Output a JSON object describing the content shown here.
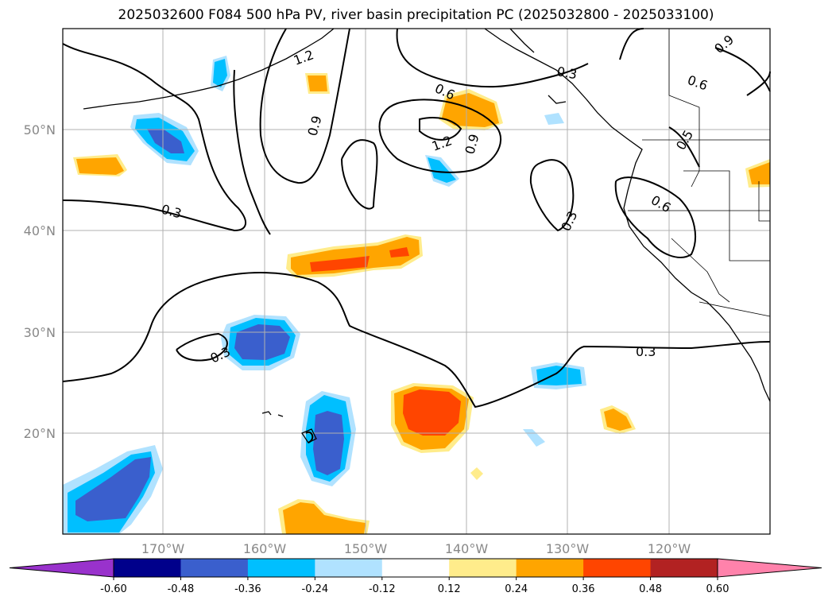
{
  "title": "2025032600 F084 500 hPa PV, river basin precipitation PC (2025032800 - 2025033100)",
  "map": {
    "lat_labels": [
      "50°N",
      "40°N",
      "30°N",
      "20°N"
    ],
    "lon_labels": [
      "170°W",
      "160°W",
      "150°W",
      "140°W",
      "130°W",
      "120°W"
    ],
    "contour_labels": [
      "1.2",
      "0.9",
      "0.6",
      "1.2",
      "0.9",
      "0.3",
      "0.9",
      "0.6",
      "0.5",
      "0.6",
      "0.3",
      "0.3",
      "0.3"
    ]
  },
  "colorbar": {
    "colors": [
      "#9932cc",
      "#00008b",
      "#3a5fcd",
      "#00bfff",
      "#b0e2ff",
      "#ffffff",
      "#ffec8b",
      "#ffa500",
      "#ff4500",
      "#b22222",
      "#ff82ab"
    ],
    "tick_labels": [
      "-0.60",
      "-0.48",
      "-0.36",
      "-0.24",
      "-0.12",
      "0.12",
      "0.24",
      "0.36",
      "0.48",
      "0.60"
    ]
  },
  "colors": {
    "grid": "#b0b0b0",
    "contour": "#000000",
    "coast": "#000000"
  }
}
